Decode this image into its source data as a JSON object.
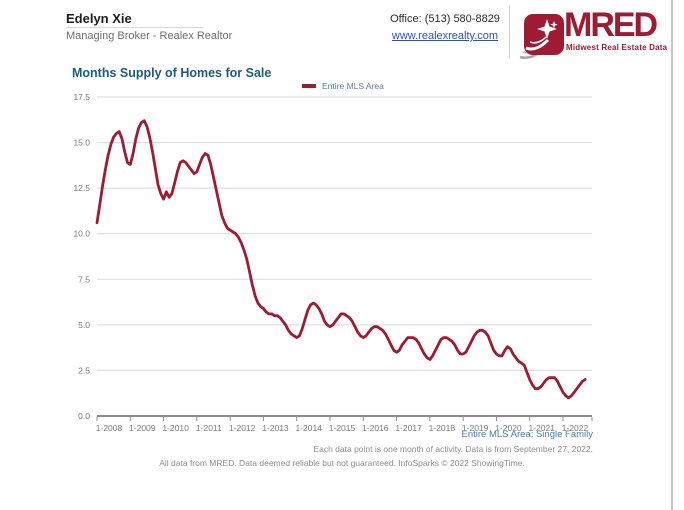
{
  "header": {
    "agent_name": "Edelyn Xie",
    "agent_title": "Managing Broker - Realex Realtor",
    "office_phone": "Office: (513) 580-8829",
    "website": "www.realexrealty.com",
    "logo": {
      "name": "MRED",
      "tagline": "Midwest Real Estate Data",
      "brand_color": "#9E1B32",
      "icon": "shooting-star-icon"
    }
  },
  "chart_data": {
    "type": "line",
    "title": "Months Supply of Homes for Sale",
    "title_color": "#1E5C7E",
    "xlabel": "",
    "ylabel": "",
    "ylim": [
      0,
      17.5
    ],
    "y_ticks": [
      0.0,
      2.5,
      5.0,
      7.5,
      10.0,
      12.5,
      15.0,
      17.5
    ],
    "x_tick_labels": [
      "1-2008",
      "1-2009",
      "1-2010",
      "1-2011",
      "1-2012",
      "1-2013",
      "1-2014",
      "1-2015",
      "1-2016",
      "1-2017",
      "1-2018",
      "1-2019",
      "1-2020",
      "1-2021",
      "1-2022"
    ],
    "x_start": "1-2008",
    "x_end": "9-2022",
    "x_frequency": "monthly",
    "grid": true,
    "legend_position": "top-center",
    "series": [
      {
        "name": "Entire MLS Area",
        "color": "#9E1B32",
        "values": [
          10.6,
          11.6,
          12.6,
          13.5,
          14.3,
          14.9,
          15.3,
          15.5,
          15.6,
          15.2,
          14.5,
          13.9,
          13.8,
          14.4,
          15.2,
          15.8,
          16.1,
          16.2,
          15.9,
          15.3,
          14.5,
          13.6,
          12.7,
          12.2,
          11.9,
          12.3,
          12.0,
          12.2,
          12.8,
          13.4,
          13.9,
          14.0,
          13.9,
          13.7,
          13.5,
          13.3,
          13.4,
          13.8,
          14.2,
          14.4,
          14.3,
          13.8,
          13.1,
          12.4,
          11.7,
          11.0,
          10.6,
          10.3,
          10.2,
          10.1,
          10.0,
          9.8,
          9.5,
          9.1,
          8.6,
          7.9,
          7.2,
          6.6,
          6.2,
          6.0,
          5.9,
          5.7,
          5.6,
          5.6,
          5.5,
          5.5,
          5.4,
          5.2,
          5.0,
          4.7,
          4.5,
          4.4,
          4.3,
          4.4,
          4.8,
          5.3,
          5.8,
          6.1,
          6.2,
          6.1,
          5.9,
          5.6,
          5.2,
          5.0,
          4.9,
          5.0,
          5.2,
          5.4,
          5.6,
          5.6,
          5.5,
          5.4,
          5.2,
          4.9,
          4.6,
          4.4,
          4.3,
          4.4,
          4.6,
          4.8,
          4.9,
          4.9,
          4.8,
          4.7,
          4.5,
          4.2,
          3.9,
          3.6,
          3.5,
          3.6,
          3.9,
          4.1,
          4.3,
          4.3,
          4.3,
          4.2,
          4.0,
          3.7,
          3.4,
          3.2,
          3.1,
          3.3,
          3.6,
          3.9,
          4.2,
          4.3,
          4.3,
          4.2,
          4.1,
          3.9,
          3.6,
          3.4,
          3.4,
          3.5,
          3.8,
          4.1,
          4.4,
          4.6,
          4.7,
          4.7,
          4.6,
          4.4,
          4.0,
          3.6,
          3.4,
          3.3,
          3.3,
          3.6,
          3.8,
          3.7,
          3.4,
          3.2,
          3.0,
          2.9,
          2.8,
          2.4,
          2.0,
          1.7,
          1.5,
          1.5,
          1.6,
          1.8,
          2.0,
          2.1,
          2.1,
          2.1,
          1.9,
          1.6,
          1.3,
          1.1,
          1.0,
          1.1,
          1.3,
          1.5,
          1.7,
          1.9,
          2.0
        ]
      }
    ]
  },
  "footnotes": {
    "segment": "Entire MLS Area: Single Family",
    "data_note": "Each data point is one month of activity. Data is from September 27, 2022.",
    "attribution": "All data from MRED. Data deemed reliable but not guaranteed. InfoSparks © 2022 ShowingTime."
  }
}
